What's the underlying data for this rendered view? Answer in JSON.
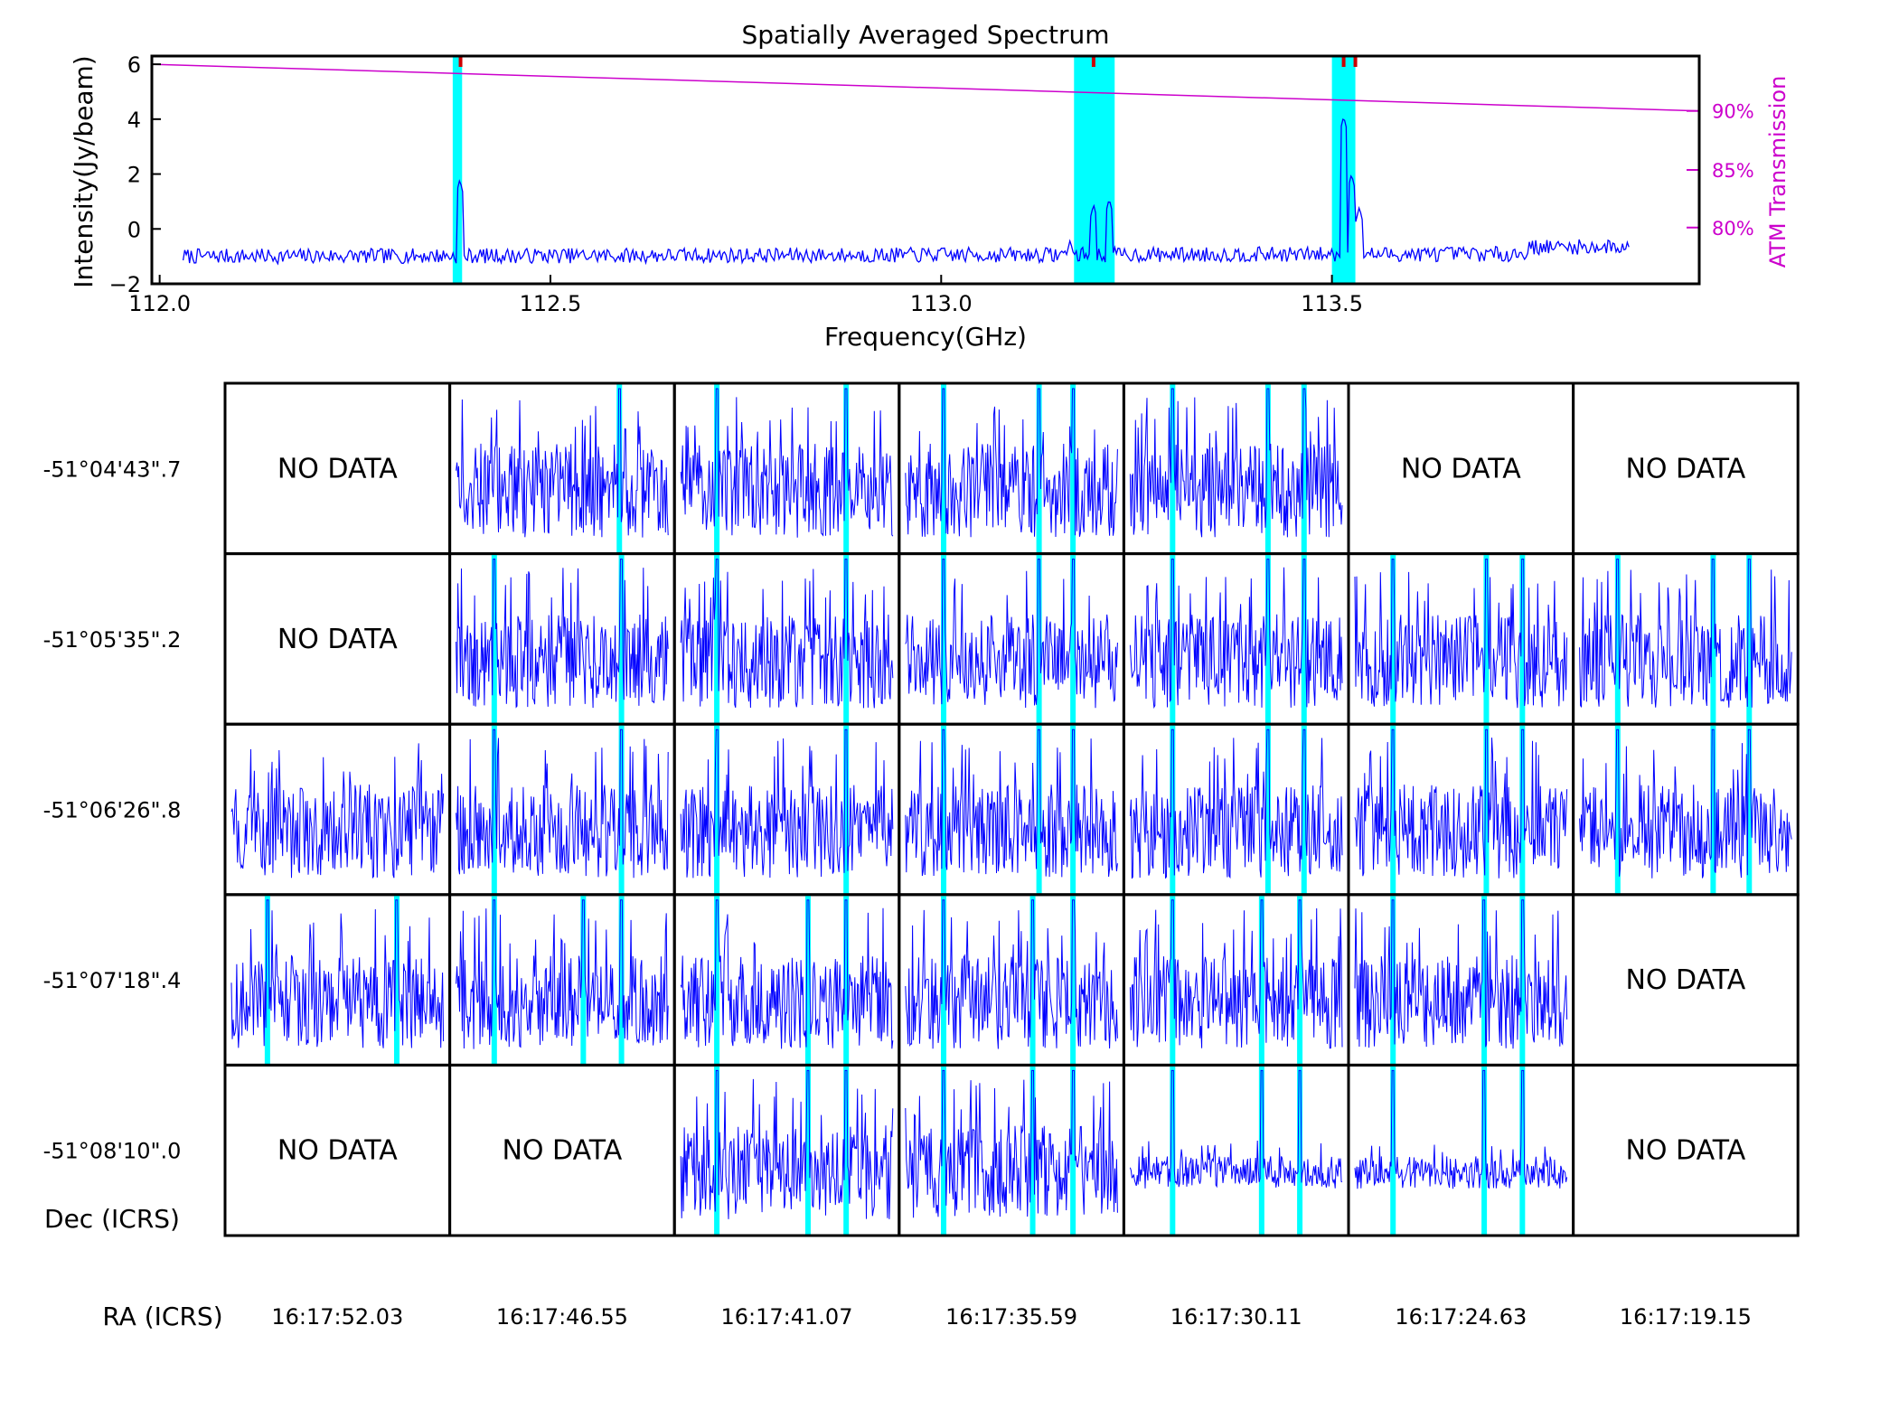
{
  "chart_data": [
    {
      "type": "line",
      "title": "Spatially Averaged Spectrum",
      "xlabel": "Frequency(GHz)",
      "ylabel": "Intensity(Jy/beam)",
      "ylabel_right": "ATM Transmission",
      "xlim": [
        111.99,
        113.97
      ],
      "ylim": [
        -2,
        6.3
      ],
      "x_ticks": [
        112.0,
        112.5,
        113.0,
        113.5
      ],
      "x_tick_labels": [
        "112.0",
        "112.5",
        "113.0",
        "113.5"
      ],
      "y_ticks": [
        -2,
        0,
        2,
        4,
        6
      ],
      "y_tick_labels": [
        "−2",
        "0",
        "2",
        "4",
        "6"
      ],
      "right_ticks": [
        {
          "label": "90%",
          "intensity": 4.3
        },
        {
          "label": "85%",
          "intensity": 2.15
        },
        {
          "label": "80%",
          "intensity": 0.05
        }
      ],
      "grid": false,
      "line_ranges_ghz": [
        [
          112.375,
          112.387
        ],
        [
          113.17,
          113.222
        ],
        [
          113.5,
          113.53
        ]
      ],
      "continuum_marker_ghz": [
        112.385,
        113.195,
        113.515,
        113.53
      ],
      "series": [
        {
          "color": "#0000ff",
          "x_range": [
            112.03,
            113.88
          ],
          "baseline": -1.0,
          "peaks": [
            {
              "x": 112.384,
              "y": 1.8
            },
            {
              "x": 113.165,
              "y": -0.4
            },
            {
              "x": 113.195,
              "y": 0.9
            },
            {
              "x": 113.215,
              "y": 1.1
            },
            {
              "x": 113.515,
              "y": 4.1
            },
            {
              "x": 113.525,
              "y": 2.0
            },
            {
              "x": 113.535,
              "y": 0.8
            }
          ]
        },
        {
          "name": "ATM Transmission",
          "color": "#cc00cc",
          "x": [
            111.99,
            113.97
          ],
          "y": [
            6.0,
            4.3
          ]
        }
      ]
    },
    {
      "type": "grid",
      "dec_axis_label": "Dec (ICRS)",
      "ra_axis_label": "RA (ICRS)",
      "no_data_label": "NO DATA",
      "ra_labels": [
        "16:17:52.03",
        "16:17:46.55",
        "16:17:41.07",
        "16:17:35.59",
        "16:17:30.11",
        "16:17:24.63",
        "16:17:19.15"
      ],
      "dec_labels": [
        "-51°04'43\".7",
        "-51°05'35\".2",
        "-51°06'26\".8",
        "-51°07'18\".4",
        "-51°08'10\".0"
      ],
      "cells": [
        [
          {
            "has_data": false
          },
          {
            "has_data": true,
            "lines": [
              0.77
            ]
          },
          {
            "has_data": true,
            "lines": [
              0.17,
              0.78
            ]
          },
          {
            "has_data": true,
            "lines": [
              0.18,
              0.63,
              0.79
            ]
          },
          {
            "has_data": true,
            "lines": [
              0.2,
              0.65,
              0.82
            ]
          },
          {
            "has_data": false
          },
          {
            "has_data": false
          }
        ],
        [
          {
            "has_data": false
          },
          {
            "has_data": true,
            "lines": [
              0.18,
              0.78
            ]
          },
          {
            "has_data": true,
            "lines": [
              0.17,
              0.78
            ]
          },
          {
            "has_data": true,
            "lines": [
              0.18,
              0.63,
              0.79
            ]
          },
          {
            "has_data": true,
            "lines": [
              0.2,
              0.65,
              0.82
            ]
          },
          {
            "has_data": true,
            "lines": [
              0.18,
              0.62,
              0.79
            ]
          },
          {
            "has_data": true,
            "lines": [
              0.18,
              0.63,
              0.8
            ]
          }
        ],
        [
          {
            "has_data": true,
            "lines": []
          },
          {
            "has_data": true,
            "lines": [
              0.18,
              0.78
            ]
          },
          {
            "has_data": true,
            "lines": [
              0.17,
              0.78
            ]
          },
          {
            "has_data": true,
            "lines": [
              0.18,
              0.63,
              0.79
            ]
          },
          {
            "has_data": true,
            "lines": [
              0.2,
              0.65,
              0.82
            ]
          },
          {
            "has_data": true,
            "lines": [
              0.18,
              0.62,
              0.79
            ]
          },
          {
            "has_data": true,
            "lines": [
              0.18,
              0.63,
              0.8
            ]
          }
        ],
        [
          {
            "has_data": true,
            "lines": [
              0.17,
              0.78
            ]
          },
          {
            "has_data": true,
            "lines": [
              0.18,
              0.6,
              0.78
            ]
          },
          {
            "has_data": true,
            "lines": [
              0.17,
              0.6,
              0.78
            ]
          },
          {
            "has_data": true,
            "lines": [
              0.18,
              0.6,
              0.79
            ]
          },
          {
            "has_data": true,
            "lines": [
              0.2,
              0.62,
              0.8
            ]
          },
          {
            "has_data": true,
            "lines": [
              0.18,
              0.61,
              0.79
            ]
          },
          {
            "has_data": false
          }
        ],
        [
          {
            "has_data": false
          },
          {
            "has_data": false
          },
          {
            "has_data": true,
            "lines": [
              0.17,
              0.6,
              0.78
            ]
          },
          {
            "has_data": true,
            "lines": [
              0.18,
              0.6,
              0.79
            ]
          },
          {
            "has_data": true,
            "lines": [
              0.2,
              0.62,
              0.8
            ]
          },
          {
            "has_data": true,
            "lines": [
              0.18,
              0.61,
              0.79
            ]
          },
          {
            "has_data": false
          }
        ]
      ]
    }
  ]
}
